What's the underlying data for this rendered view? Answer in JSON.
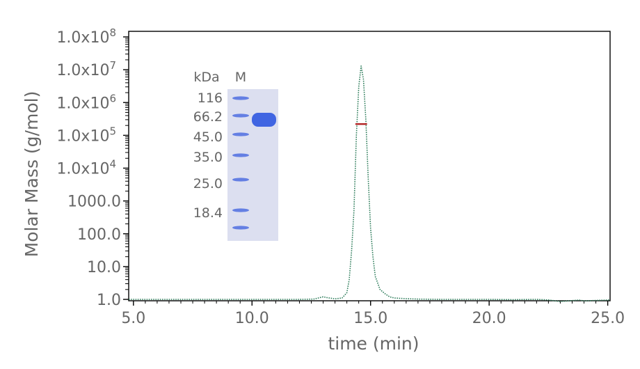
{
  "chart_data": {
    "type": "line",
    "xlabel": "time (min)",
    "ylabel": "Molar Mass (g/mol)",
    "x_ticks": [
      "5.0",
      "10.0",
      "15.0",
      "20.0",
      "25.0"
    ],
    "y_ticks": [
      {
        "mantissa": "1.0",
        "exp": ""
      },
      {
        "mantissa": "10.0",
        "exp": ""
      },
      {
        "mantissa": "100.0",
        "exp": ""
      },
      {
        "mantissa": "1000.0",
        "exp": ""
      },
      {
        "mantissa": "1.0x10",
        "exp": "4"
      },
      {
        "mantissa": "1.0x10",
        "exp": "5"
      },
      {
        "mantissa": "1.0x10",
        "exp": "6"
      },
      {
        "mantissa": "1.0x10",
        "exp": "7"
      },
      {
        "mantissa": "1.0x10",
        "exp": "8"
      }
    ],
    "xlim": [
      4.8,
      25.1
    ],
    "ylim": [
      1,
      100000000
    ],
    "y_scale": "log",
    "grid": false,
    "series": [
      {
        "kind": "chromatogram",
        "color": "#2e7d5b",
        "style": "dotted",
        "x": [
          4.8,
          6.0,
          8.0,
          10.0,
          12.0,
          12.6,
          12.8,
          13.0,
          13.2,
          13.5,
          13.8,
          14.0,
          14.1,
          14.2,
          14.3,
          14.4,
          14.5,
          14.6,
          14.7,
          14.8,
          14.9,
          15.0,
          15.1,
          15.2,
          15.4,
          15.6,
          15.8,
          16.0,
          16.5,
          17.0,
          18.0,
          20.0,
          21.0,
          22.0,
          22.5,
          23.0,
          23.5,
          23.8,
          24.0,
          24.5,
          25.1
        ],
        "y": [
          1.0,
          1.0,
          1.0,
          1.0,
          1.0,
          1.02,
          1.1,
          1.2,
          1.12,
          1.04,
          1.1,
          1.6,
          4,
          30,
          500,
          100000.0,
          3000000.0,
          13000000.0,
          5000000.0,
          300000.0,
          5000,
          150,
          20,
          5,
          2,
          1.5,
          1.2,
          1.1,
          1.05,
          1.02,
          1.0,
          1.0,
          0.98,
          1.0,
          0.96,
          0.86,
          0.92,
          0.95,
          0.9,
          0.93,
          0.96
        ]
      },
      {
        "kind": "molar-mass",
        "color": "#b22222",
        "style": "solid",
        "x": [
          14.36,
          14.85
        ],
        "y": [
          220000,
          220000
        ]
      }
    ]
  },
  "gel": {
    "unit_label": "kDa",
    "marker_lane_label": "M",
    "marker_sizes": [
      "116",
      "66.2",
      "45.0",
      "35.0",
      "25.0",
      "18.4"
    ],
    "gel_color": "#dcdff0",
    "band_color": "#4f6ee0",
    "sample_band_color": "#2f58e0"
  }
}
